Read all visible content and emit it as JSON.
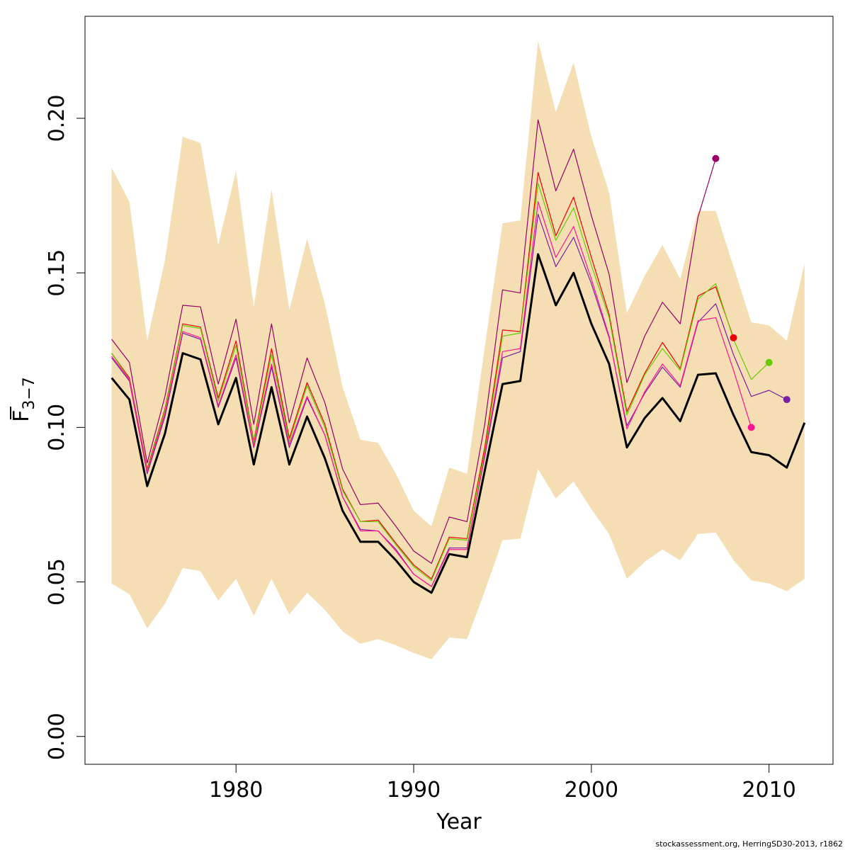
{
  "chart_data": {
    "type": "line",
    "xlabel": "Year",
    "ylabel_main": "F",
    "ylabel_sub": "3−7",
    "xlim": [
      1971.5,
      2013.6
    ],
    "ylim": [
      -0.009,
      0.233
    ],
    "x_ticks": [
      1980,
      1990,
      2000,
      2010
    ],
    "x_tick_labels": [
      "1980",
      "1990",
      "2000",
      "2010"
    ],
    "y_ticks": [
      0.0,
      0.05,
      0.1,
      0.15,
      0.2
    ],
    "y_tick_labels": [
      "0.00",
      "0.05",
      "0.10",
      "0.15",
      "0.20"
    ],
    "band": {
      "color": "#f5deb3",
      "x": [
        1973,
        1974,
        1975,
        1976,
        1977,
        1978,
        1979,
        1980,
        1981,
        1982,
        1983,
        1984,
        1985,
        1986,
        1987,
        1988,
        1989,
        1990,
        1991,
        1992,
        1993,
        1994,
        1995,
        1996,
        1997,
        1998,
        1999,
        2000,
        2001,
        2002,
        2003,
        2004,
        2005,
        2006,
        2007,
        2008,
        2009,
        2010,
        2011,
        2012
      ],
      "upper": [
        0.184,
        0.173,
        0.128,
        0.154,
        0.194,
        0.192,
        0.159,
        0.183,
        0.139,
        0.177,
        0.138,
        0.161,
        0.14,
        0.113,
        0.096,
        0.095,
        0.085,
        0.073,
        0.068,
        0.087,
        0.085,
        0.126,
        0.166,
        0.167,
        0.225,
        0.202,
        0.218,
        0.194,
        0.176,
        0.137,
        0.149,
        0.159,
        0.148,
        0.17,
        0.17,
        0.152,
        0.134,
        0.133,
        0.128,
        0.153
      ],
      "lower": [
        0.0495,
        0.046,
        0.035,
        0.043,
        0.0545,
        0.0535,
        0.044,
        0.051,
        0.039,
        0.051,
        0.0395,
        0.0465,
        0.041,
        0.034,
        0.03,
        0.0315,
        0.0295,
        0.027,
        0.025,
        0.032,
        0.0315,
        0.047,
        0.0635,
        0.064,
        0.0865,
        0.077,
        0.0825,
        0.0735,
        0.0655,
        0.051,
        0.0565,
        0.0605,
        0.057,
        0.0655,
        0.066,
        0.057,
        0.0505,
        0.0495,
        0.047,
        0.051
      ]
    },
    "series": [
      {
        "color": "#000000",
        "width": 3,
        "x": [
          1973,
          1974,
          1975,
          1976,
          1977,
          1978,
          1979,
          1980,
          1981,
          1982,
          1983,
          1984,
          1985,
          1986,
          1987,
          1988,
          1989,
          1990,
          1991,
          1992,
          1993,
          1994,
          1995,
          1996,
          1997,
          1998,
          1999,
          2000,
          2001,
          2002,
          2003,
          2004,
          2005,
          2006,
          2007,
          2008,
          2009,
          2010,
          2011,
          2012
        ],
        "values": [
          0.116,
          0.109,
          0.081,
          0.098,
          0.124,
          0.122,
          0.101,
          0.116,
          0.088,
          0.113,
          0.088,
          0.1035,
          0.09,
          0.073,
          0.063,
          0.063,
          0.057,
          0.05,
          0.0465,
          0.059,
          0.058,
          0.086,
          0.114,
          0.115,
          0.156,
          0.1395,
          0.15,
          0.1335,
          0.1205,
          0.0935,
          0.103,
          0.1095,
          0.102,
          0.117,
          0.1175,
          0.104,
          0.092,
          0.091,
          0.087,
          0.1015
        ]
      },
      {
        "color": "#990066",
        "width": 1.2,
        "x": [
          1973,
          1974,
          1975,
          1976,
          1977,
          1978,
          1979,
          1980,
          1981,
          1982,
          1983,
          1984,
          1985,
          1986,
          1987,
          1988,
          1989,
          1990,
          1991,
          1992,
          1993,
          1994,
          1995,
          1996,
          1997,
          1998,
          1999,
          2000,
          2001,
          2002,
          2003,
          2004,
          2005,
          2006,
          2007
        ],
        "values": [
          0.1285,
          0.121,
          0.0885,
          0.11,
          0.1395,
          0.139,
          0.114,
          0.135,
          0.101,
          0.1335,
          0.1015,
          0.1225,
          0.108,
          0.0865,
          0.075,
          0.0755,
          0.068,
          0.06,
          0.056,
          0.071,
          0.0695,
          0.101,
          0.1445,
          0.1435,
          0.1995,
          0.1765,
          0.19,
          0.1685,
          0.1495,
          0.1145,
          0.1295,
          0.1405,
          0.1335,
          0.168,
          0.187
        ],
        "end_point": true
      },
      {
        "color": "#ee0000",
        "width": 1.2,
        "x": [
          1973,
          1974,
          1975,
          1976,
          1977,
          1978,
          1979,
          1980,
          1981,
          1982,
          1983,
          1984,
          1985,
          1986,
          1987,
          1988,
          1989,
          1990,
          1991,
          1992,
          1993,
          1994,
          1995,
          1996,
          1997,
          1998,
          1999,
          2000,
          2001,
          2002,
          2003,
          2004,
          2005,
          2006,
          2007,
          2008
        ],
        "values": [
          0.124,
          0.116,
          0.0865,
          0.106,
          0.1335,
          0.1325,
          0.1095,
          0.128,
          0.0955,
          0.1255,
          0.0965,
          0.1145,
          0.101,
          0.08,
          0.0695,
          0.07,
          0.0625,
          0.0555,
          0.051,
          0.0645,
          0.064,
          0.0935,
          0.1315,
          0.131,
          0.1825,
          0.162,
          0.1745,
          0.155,
          0.1365,
          0.105,
          0.1175,
          0.1275,
          0.119,
          0.1425,
          0.1455,
          0.129
        ],
        "end_point": true
      },
      {
        "color": "#66cc00",
        "width": 1.2,
        "x": [
          1973,
          1974,
          1975,
          1976,
          1977,
          1978,
          1979,
          1980,
          1981,
          1982,
          1983,
          1984,
          1985,
          1986,
          1987,
          1988,
          1989,
          1990,
          1991,
          1992,
          1993,
          1994,
          1995,
          1996,
          1997,
          1998,
          1999,
          2000,
          2001,
          2002,
          2003,
          2004,
          2005,
          2006,
          2007,
          2008,
          2009,
          2010
        ],
        "values": [
          0.124,
          0.1155,
          0.086,
          0.1055,
          0.133,
          0.132,
          0.1085,
          0.1265,
          0.095,
          0.1235,
          0.0955,
          0.1135,
          0.1,
          0.0795,
          0.0695,
          0.0695,
          0.062,
          0.055,
          0.0505,
          0.064,
          0.0635,
          0.092,
          0.1295,
          0.1305,
          0.179,
          0.1605,
          0.171,
          0.1525,
          0.1355,
          0.104,
          0.117,
          0.1255,
          0.1185,
          0.1415,
          0.1465,
          0.1285,
          0.1155,
          0.121
        ],
        "end_point": true
      },
      {
        "color": "#7a1fa2",
        "width": 1.2,
        "x": [
          1973,
          1974,
          1975,
          1976,
          1977,
          1978,
          1979,
          1980,
          1981,
          1982,
          1983,
          1984,
          1985,
          1986,
          1987,
          1988,
          1989,
          1990,
          1991,
          1992,
          1993,
          1994,
          1995,
          1996,
          1997,
          1998,
          1999,
          2000,
          2001,
          2002,
          2003,
          2004,
          2005,
          2006,
          2007,
          2008,
          2009,
          2010,
          2011
        ],
        "values": [
          0.1225,
          0.115,
          0.085,
          0.1035,
          0.1305,
          0.1285,
          0.1065,
          0.1225,
          0.0935,
          0.1195,
          0.0935,
          0.1095,
          0.0975,
          0.0775,
          0.067,
          0.0665,
          0.0605,
          0.0525,
          0.0485,
          0.061,
          0.061,
          0.0905,
          0.1225,
          0.1245,
          0.169,
          0.152,
          0.1615,
          0.1465,
          0.129,
          0.1005,
          0.111,
          0.1195,
          0.113,
          0.134,
          0.14,
          0.1235,
          0.11,
          0.112,
          0.109
        ],
        "end_point": true
      },
      {
        "color": "#ff1493",
        "width": 1.2,
        "x": [
          1973,
          1974,
          1975,
          1976,
          1977,
          1978,
          1979,
          1980,
          1981,
          1982,
          1983,
          1984,
          1985,
          1986,
          1987,
          1988,
          1989,
          1990,
          1991,
          1992,
          1993,
          1994,
          1995,
          1996,
          1997,
          1998,
          1999,
          2000,
          2001,
          2002,
          2003,
          2004,
          2005,
          2006,
          2007,
          2008,
          2009
        ],
        "values": [
          0.123,
          0.1155,
          0.0855,
          0.1045,
          0.131,
          0.129,
          0.107,
          0.1235,
          0.094,
          0.1205,
          0.0945,
          0.11,
          0.0975,
          0.0775,
          0.0665,
          0.0665,
          0.06,
          0.0525,
          0.0485,
          0.0605,
          0.0605,
          0.091,
          0.1245,
          0.1255,
          0.173,
          0.155,
          0.165,
          0.148,
          0.1295,
          0.0995,
          0.1115,
          0.1205,
          0.1135,
          0.1345,
          0.1355,
          0.1185,
          0.1
        ],
        "end_point": true
      }
    ]
  },
  "credit": "stockassessment.org, HerringSD30-2013, r1862"
}
